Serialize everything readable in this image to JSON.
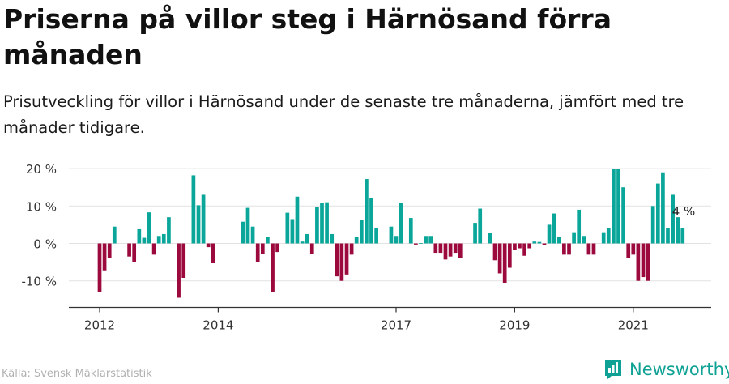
{
  "title": "Priserna på villor steg i Härnösand förra månaden",
  "subtitle": "Prisutveckling för villor i Härnösand under de senaste tre månaderna, jämfört med tre månader tidigare.",
  "source": "Källa: Svensk Mäklarstatistik",
  "brand": {
    "name": "Newsworthy"
  },
  "colors": {
    "positive": "#0aa69a",
    "negative": "#9c0a3d",
    "grid": "#e2e2e2",
    "axis": "#333333",
    "brand": "#0fa294"
  },
  "chart_data": {
    "type": "bar",
    "unit": "%",
    "ylim": [
      -17,
      20
    ],
    "yticks": [
      -10,
      0,
      10,
      20
    ],
    "ytick_labels": [
      "-10 %",
      "0 %",
      "10 %",
      "20 %"
    ],
    "x_tick_labels": [
      {
        "label": "2012",
        "x": 2012.0
      },
      {
        "label": "2014",
        "x": 2014.0
      },
      {
        "label": "2017",
        "x": 2017.0
      },
      {
        "label": "2019",
        "x": 2019.0
      },
      {
        "label": "2021",
        "x": 2021.0
      }
    ],
    "annotation": {
      "text": "4 %",
      "x": 2021.75,
      "y": 4
    },
    "bars": [
      {
        "x": 2012.0,
        "y": -13.0
      },
      {
        "x": 2012.083,
        "y": -7.2
      },
      {
        "x": 2012.167,
        "y": -3.8
      },
      {
        "x": 2012.25,
        "y": 4.5
      },
      {
        "x": 2012.5,
        "y": -3.5
      },
      {
        "x": 2012.583,
        "y": -5.0
      },
      {
        "x": 2012.667,
        "y": 3.8
      },
      {
        "x": 2012.75,
        "y": 1.5
      },
      {
        "x": 2012.833,
        "y": 8.3
      },
      {
        "x": 2012.917,
        "y": -3.0
      },
      {
        "x": 2013.0,
        "y": 2.0
      },
      {
        "x": 2013.083,
        "y": 2.5
      },
      {
        "x": 2013.167,
        "y": 7.0
      },
      {
        "x": 2013.333,
        "y": -14.5
      },
      {
        "x": 2013.417,
        "y": -9.2
      },
      {
        "x": 2013.583,
        "y": 18.2
      },
      {
        "x": 2013.667,
        "y": 10.2
      },
      {
        "x": 2013.75,
        "y": 13.0
      },
      {
        "x": 2013.833,
        "y": -1.0
      },
      {
        "x": 2013.917,
        "y": -5.3
      },
      {
        "x": 2014.417,
        "y": 5.8
      },
      {
        "x": 2014.5,
        "y": 9.5
      },
      {
        "x": 2014.583,
        "y": 4.5
      },
      {
        "x": 2014.667,
        "y": -5.0
      },
      {
        "x": 2014.75,
        "y": -2.8
      },
      {
        "x": 2014.833,
        "y": 1.8
      },
      {
        "x": 2014.917,
        "y": -13.0
      },
      {
        "x": 2015.0,
        "y": -2.3
      },
      {
        "x": 2015.167,
        "y": 8.2
      },
      {
        "x": 2015.25,
        "y": 6.5
      },
      {
        "x": 2015.333,
        "y": 12.5
      },
      {
        "x": 2015.417,
        "y": 0.5
      },
      {
        "x": 2015.5,
        "y": 2.5
      },
      {
        "x": 2015.583,
        "y": -2.8
      },
      {
        "x": 2015.667,
        "y": 9.8
      },
      {
        "x": 2015.75,
        "y": 10.8
      },
      {
        "x": 2015.833,
        "y": 11.0
      },
      {
        "x": 2015.917,
        "y": 2.5
      },
      {
        "x": 2016.0,
        "y": -8.8
      },
      {
        "x": 2016.083,
        "y": -10.0
      },
      {
        "x": 2016.167,
        "y": -8.3
      },
      {
        "x": 2016.25,
        "y": -3.0
      },
      {
        "x": 2016.333,
        "y": 1.8
      },
      {
        "x": 2016.417,
        "y": 6.3
      },
      {
        "x": 2016.5,
        "y": 17.2
      },
      {
        "x": 2016.583,
        "y": 12.2
      },
      {
        "x": 2016.667,
        "y": 4.0
      },
      {
        "x": 2016.917,
        "y": 4.5
      },
      {
        "x": 2017.0,
        "y": 2.0
      },
      {
        "x": 2017.083,
        "y": 10.8
      },
      {
        "x": 2017.25,
        "y": 6.8
      },
      {
        "x": 2017.333,
        "y": -0.3
      },
      {
        "x": 2017.417,
        "y": 0.1
      },
      {
        "x": 2017.5,
        "y": 2.0
      },
      {
        "x": 2017.583,
        "y": 2.0
      },
      {
        "x": 2017.667,
        "y": -2.5
      },
      {
        "x": 2017.75,
        "y": -2.5
      },
      {
        "x": 2017.833,
        "y": -4.3
      },
      {
        "x": 2017.917,
        "y": -3.5
      },
      {
        "x": 2018.0,
        "y": -2.5
      },
      {
        "x": 2018.083,
        "y": -3.8
      },
      {
        "x": 2018.333,
        "y": 5.5
      },
      {
        "x": 2018.417,
        "y": 9.3
      },
      {
        "x": 2018.583,
        "y": 2.8
      },
      {
        "x": 2018.667,
        "y": -4.5
      },
      {
        "x": 2018.75,
        "y": -8.0
      },
      {
        "x": 2018.833,
        "y": -10.5
      },
      {
        "x": 2018.917,
        "y": -6.5
      },
      {
        "x": 2019.0,
        "y": -1.8
      },
      {
        "x": 2019.083,
        "y": -1.3
      },
      {
        "x": 2019.167,
        "y": -3.3
      },
      {
        "x": 2019.25,
        "y": -1.3
      },
      {
        "x": 2019.333,
        "y": 0.5
      },
      {
        "x": 2019.417,
        "y": 0.4
      },
      {
        "x": 2019.5,
        "y": -0.4
      },
      {
        "x": 2019.583,
        "y": 5.0
      },
      {
        "x": 2019.667,
        "y": 8.0
      },
      {
        "x": 2019.75,
        "y": 1.8
      },
      {
        "x": 2019.833,
        "y": -3.0
      },
      {
        "x": 2019.917,
        "y": -3.0
      },
      {
        "x": 2020.0,
        "y": 3.0
      },
      {
        "x": 2020.083,
        "y": 9.0
      },
      {
        "x": 2020.167,
        "y": 2.0
      },
      {
        "x": 2020.25,
        "y": -3.0
      },
      {
        "x": 2020.333,
        "y": -3.0
      },
      {
        "x": 2020.5,
        "y": 3.0
      },
      {
        "x": 2020.583,
        "y": 4.0
      },
      {
        "x": 2020.667,
        "y": 20.0
      },
      {
        "x": 2020.75,
        "y": 20.0
      },
      {
        "x": 2020.833,
        "y": 15.0
      },
      {
        "x": 2020.917,
        "y": -4.0
      },
      {
        "x": 2021.0,
        "y": -3.0
      },
      {
        "x": 2021.083,
        "y": -10.0
      },
      {
        "x": 2021.167,
        "y": -9.0
      },
      {
        "x": 2021.25,
        "y": -10.0
      },
      {
        "x": 2021.333,
        "y": 10.0
      },
      {
        "x": 2021.417,
        "y": 16.0
      },
      {
        "x": 2021.5,
        "y": 19.0
      },
      {
        "x": 2021.583,
        "y": 4.0
      },
      {
        "x": 2021.667,
        "y": 13.0
      },
      {
        "x": 2021.75,
        "y": 7.0
      },
      {
        "x": 2021.833,
        "y": 4.0
      }
    ]
  }
}
